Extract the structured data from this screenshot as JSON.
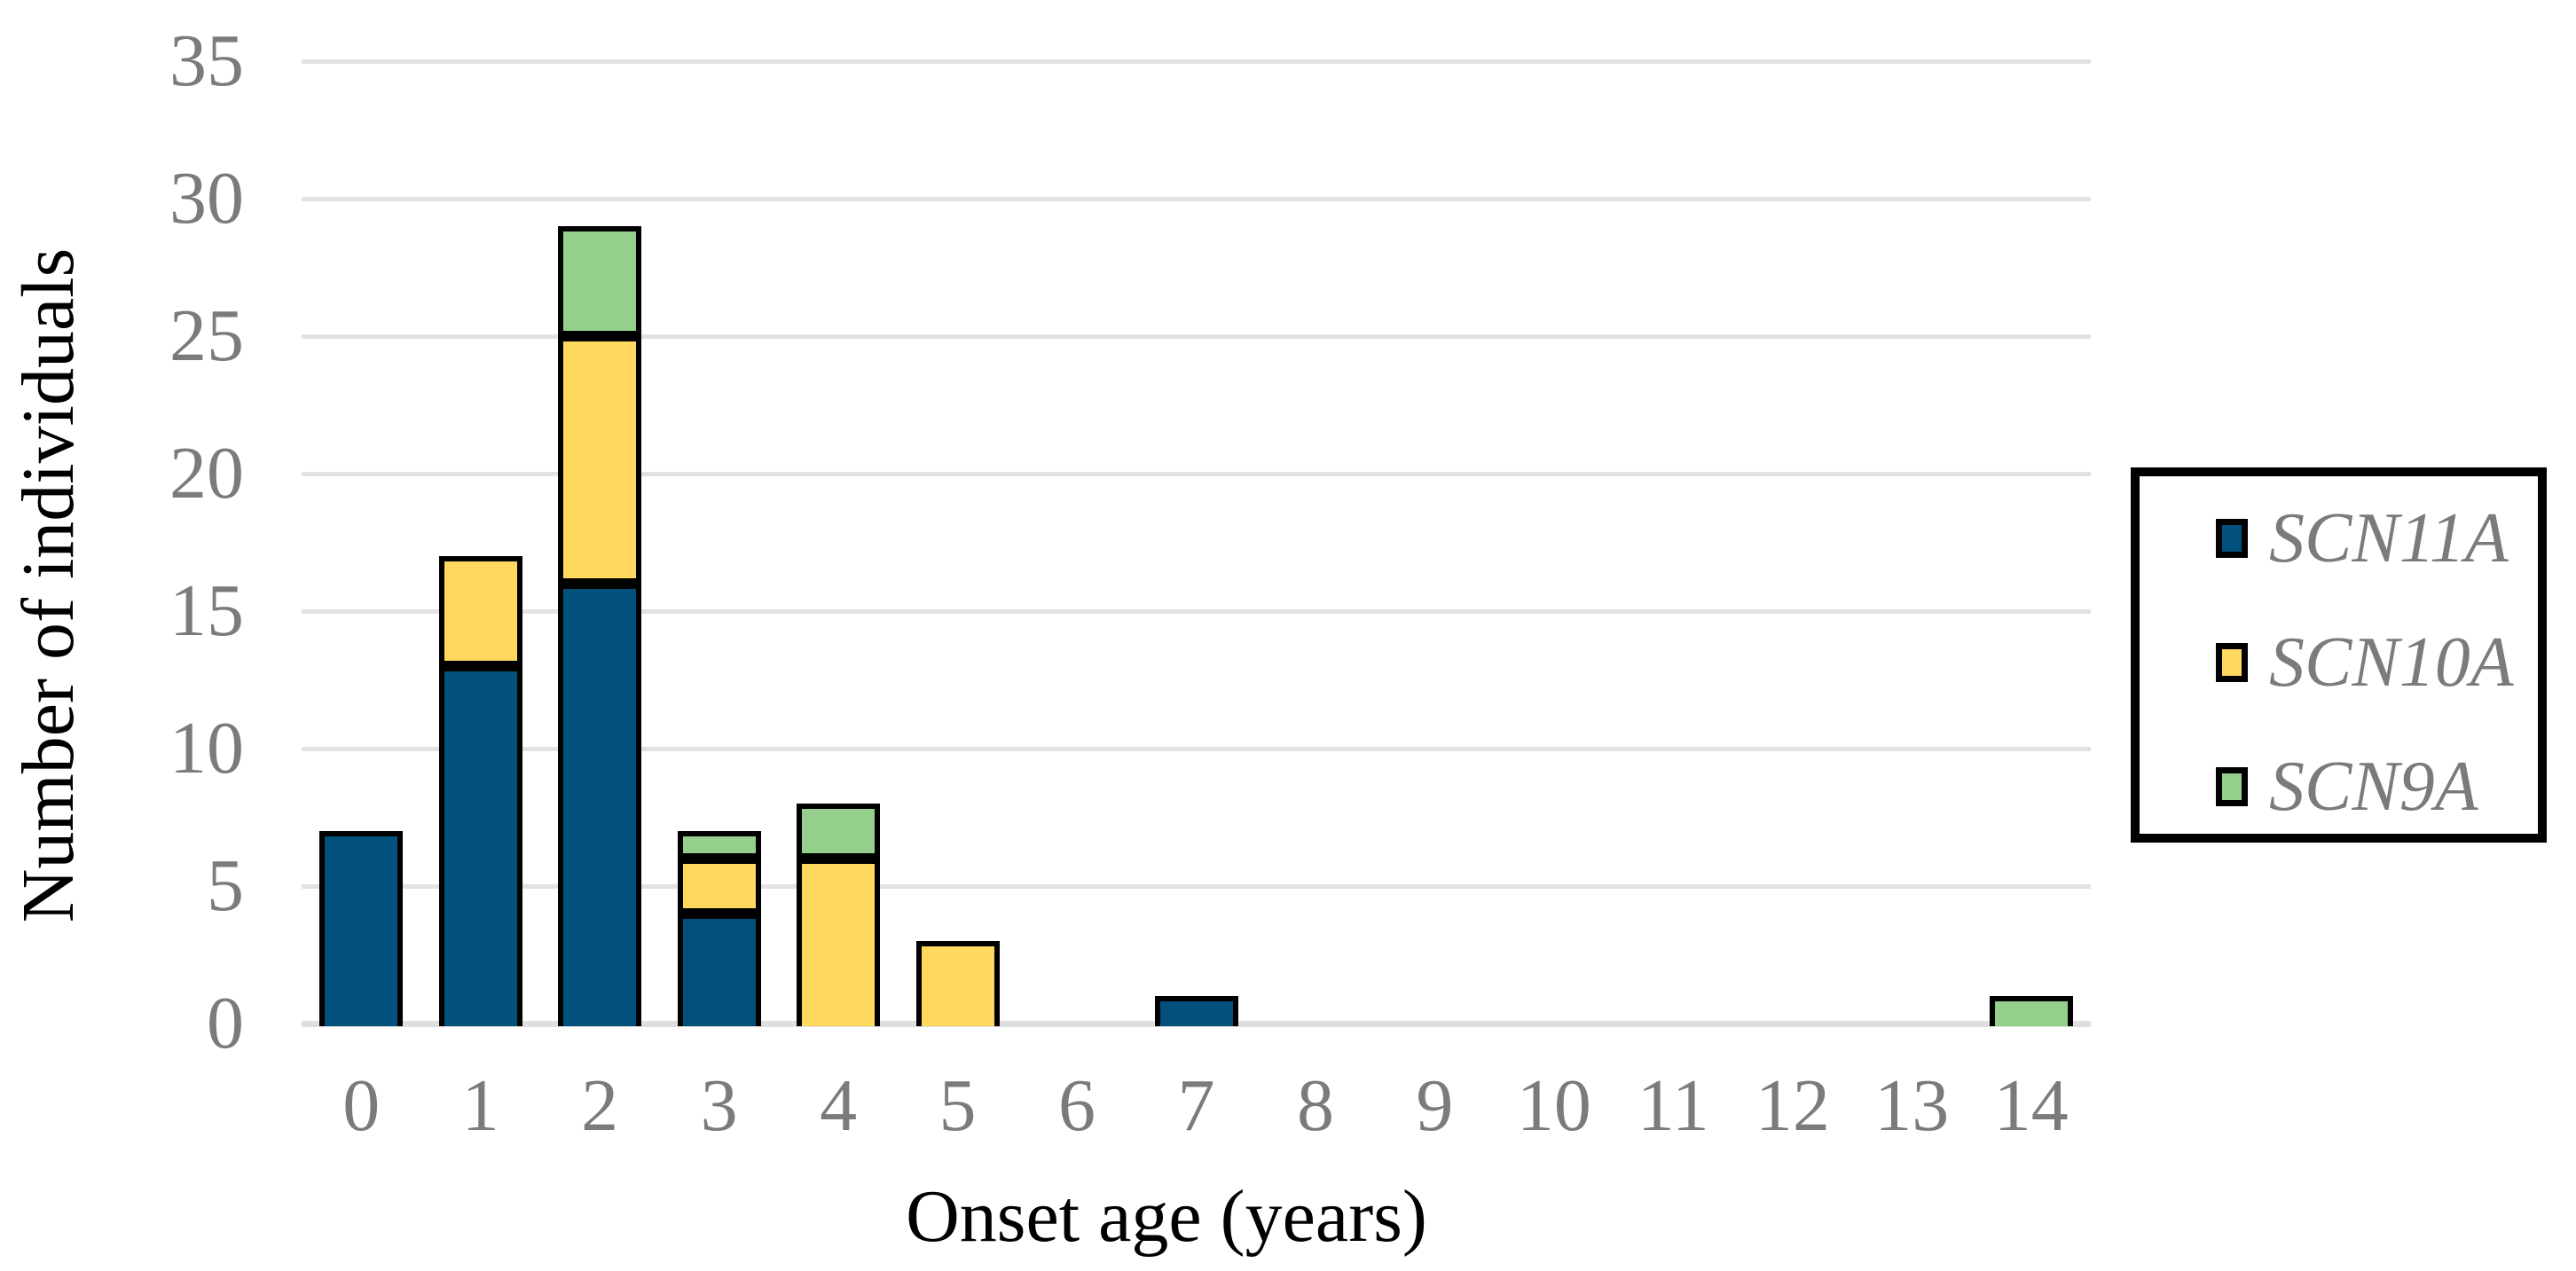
{
  "chart_data": {
    "type": "bar",
    "stacked": true,
    "title": "",
    "xlabel": "Onset age (years)",
    "ylabel": "Number of individuals",
    "categories": [
      "0",
      "1",
      "2",
      "3",
      "4",
      "5",
      "6",
      "7",
      "8",
      "9",
      "10",
      "11",
      "12",
      "13",
      "14"
    ],
    "series": [
      {
        "name": "SCN11A",
        "color": "#02517d",
        "values": [
          7,
          13,
          16,
          4,
          0,
          0,
          0,
          1,
          0,
          0,
          0,
          0,
          0,
          0,
          0
        ]
      },
      {
        "name": "SCN10A",
        "color": "#fed95e",
        "values": [
          0,
          4,
          9,
          2,
          6,
          3,
          0,
          0,
          0,
          0,
          0,
          0,
          0,
          0,
          0
        ]
      },
      {
        "name": "SCN9A",
        "color": "#94d08c",
        "values": [
          0,
          0,
          4,
          1,
          2,
          0,
          0,
          0,
          0,
          0,
          0,
          0,
          0,
          0,
          1
        ]
      }
    ],
    "yticks": [
      0,
      5,
      10,
      15,
      20,
      25,
      30,
      35
    ],
    "ylim": [
      0,
      35
    ],
    "grid": "horizontal-only",
    "legend_position": "right",
    "legend_entries": [
      "SCN11A",
      "SCN10A",
      "SCN9A"
    ],
    "colors": {
      "bar_border": "#000000",
      "gridline": "#e2e2e2",
      "baseline": "#dfdfdf",
      "tick_text": "#7b7b7b",
      "axis_title_text": "#000000",
      "legend_text": "#7b7b7b",
      "legend_border": "#000000",
      "background": "#ffffff"
    }
  }
}
